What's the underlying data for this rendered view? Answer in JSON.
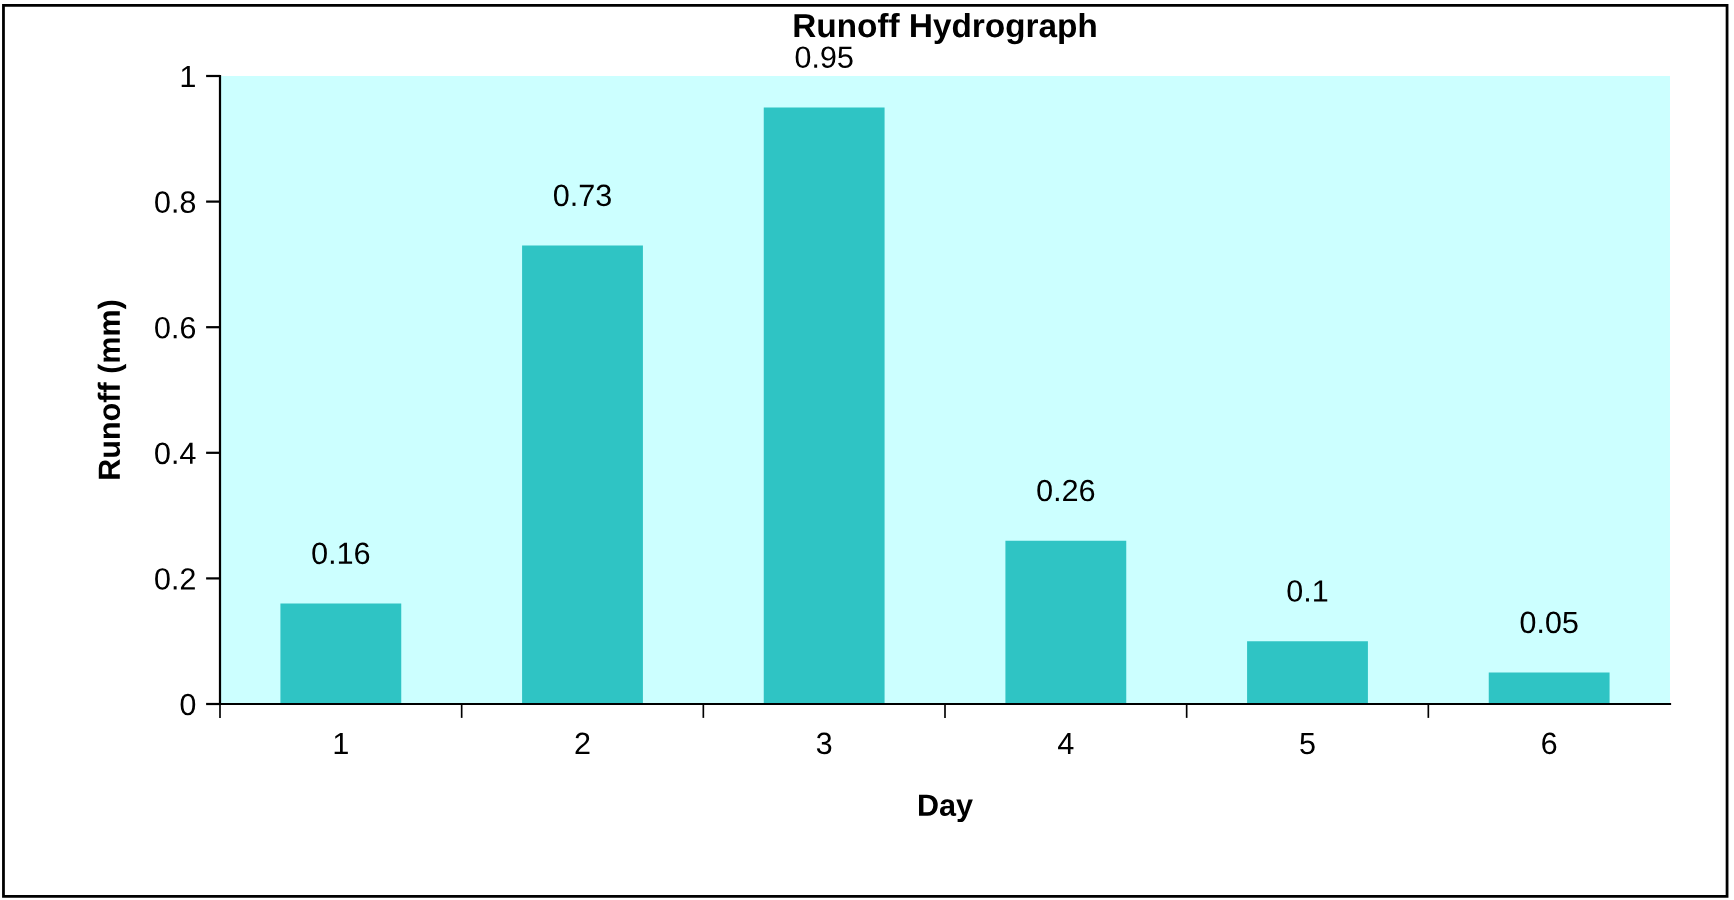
{
  "chart_data": {
    "type": "bar",
    "title": "Runoff Hydrograph",
    "xlabel": "Day",
    "ylabel": "Runoff (mm)",
    "categories": [
      "1",
      "2",
      "3",
      "4",
      "5",
      "6"
    ],
    "values": [
      0.16,
      0.73,
      0.95,
      0.26,
      0.1,
      0.05
    ],
    "color": "#2fc4c4",
    "ylim": [
      0,
      1
    ],
    "yticks": [
      0,
      0.2,
      0.4,
      0.6,
      0.8,
      1
    ],
    "data_labels": true,
    "grid": false,
    "legend": false
  }
}
